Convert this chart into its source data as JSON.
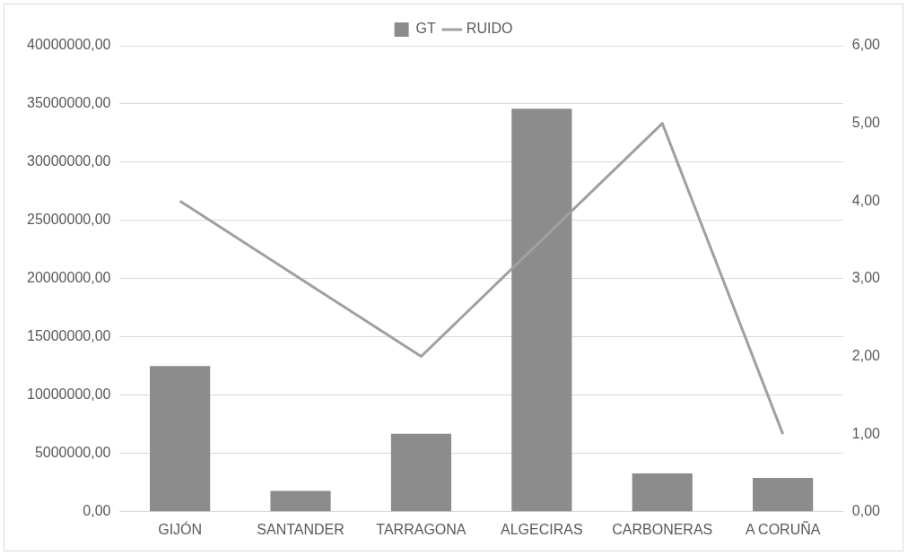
{
  "chart_data": {
    "type": "bar",
    "categories": [
      "GIJÓN",
      "SANTANDER",
      "TARRAGONA",
      "ALGECIRAS",
      "CARBONERAS",
      "A CORUÑA"
    ],
    "series": [
      {
        "name": "GT",
        "color": "#8c8c8c",
        "values": [
          12500000,
          1800000,
          6700000,
          34600000,
          3300000,
          2900000
        ]
      },
      {
        "name": "RUIDO",
        "type": "line",
        "axis": "y2",
        "color": "#a0a0a0",
        "values": [
          4,
          3,
          2,
          3.5,
          5,
          1
        ],
        "marker": "none"
      }
    ],
    "ylim": [
      0,
      40000000
    ],
    "yticks": [
      {
        "value": 0,
        "label": "0,00"
      },
      {
        "value": 5000000,
        "label": "5000000,00"
      },
      {
        "value": 10000000,
        "label": "10000000,00"
      },
      {
        "value": 15000000,
        "label": "15000000,00"
      },
      {
        "value": 20000000,
        "label": "20000000,00"
      },
      {
        "value": 25000000,
        "label": "25000000,00"
      },
      {
        "value": 30000000,
        "label": "30000000,00"
      },
      {
        "value": 35000000,
        "label": "35000000,00"
      },
      {
        "value": 40000000,
        "label": "40000000,00"
      }
    ],
    "y2lim": [
      0,
      6
    ],
    "y2ticks": [
      {
        "value": 0,
        "label": "0,00"
      },
      {
        "value": 1,
        "label": "1,00"
      },
      {
        "value": 2,
        "label": "2,00"
      },
      {
        "value": 3,
        "label": "3,00"
      },
      {
        "value": 4,
        "label": "4,00"
      },
      {
        "value": 5,
        "label": "5,00"
      },
      {
        "value": 6,
        "label": "6,00"
      }
    ],
    "grid": "y",
    "legend": "top"
  }
}
